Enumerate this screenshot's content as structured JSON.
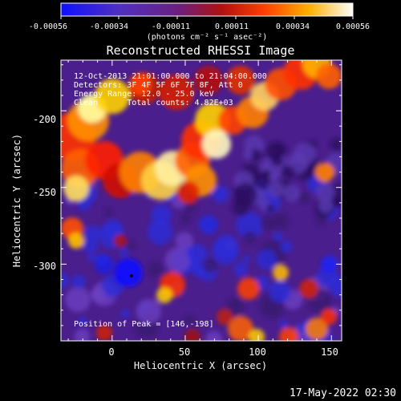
{
  "colorbar": {
    "tick_labels": [
      "-0.00056",
      "-0.00034",
      "-0.00011",
      "0.00011",
      "0.00034",
      "0.00056"
    ],
    "units": "(photons cm⁻² s⁻¹ asec⁻²)",
    "range": [
      -0.00056,
      0.00056
    ],
    "colormap": "rhessi blue-purple-red-yellow-white"
  },
  "title": "Reconstructed RHESSI Image",
  "annotations": {
    "line1": "12-Oct-2013 21:01:00.000 to 21:04:00.000",
    "line2": "Detectors: 3F 4F 5F 6F 7F 8F, Att 0",
    "line3": "Energy Range: 12.0 - 25.0 keV",
    "line4": "Clean      Total counts: 4.82E+03",
    "peak": "Position of Peak = [146,-198]"
  },
  "axes": {
    "xlabel": "Heliocentric X (arcsec)",
    "ylabel": "Heliocentric Y (arcsec)",
    "xticks": [
      "0",
      "50",
      "100",
      "150"
    ],
    "yticks": [
      "-200",
      "-250",
      "-300"
    ],
    "xlim": [
      -35,
      157
    ],
    "ylim": [
      -350,
      -167
    ]
  },
  "timestamp": "17-May-2022 02:30",
  "colors": {
    "background": "#000000",
    "text": "#ffffff"
  }
}
